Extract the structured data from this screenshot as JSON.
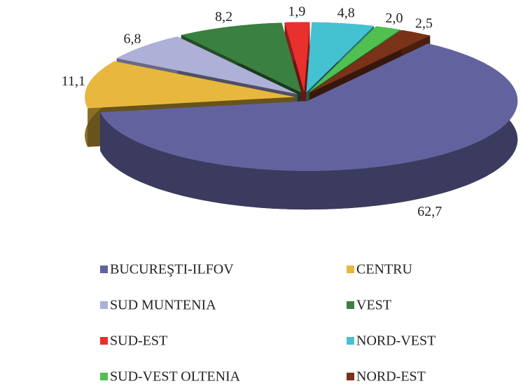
{
  "chart_data": {
    "type": "pie",
    "categories": [
      "BUCUREŞTI-ILFOV",
      "CENTRU",
      "SUD MUNTENIA",
      "VEST",
      "SUD-EST",
      "NORD-VEST",
      "SUD-VEST OLTENIA",
      "NORD-EST"
    ],
    "values": [
      62.7,
      11.1,
      6.8,
      8.2,
      1.9,
      4.8,
      2.0,
      2.5
    ],
    "value_labels": [
      "62,7",
      "11,1",
      "6,8",
      "8,2",
      "1,9",
      "4,8",
      "2,0",
      "2,5"
    ],
    "colors": [
      "#62639e",
      "#e8b83e",
      "#aeb0d8",
      "#3a8040",
      "#e8302c",
      "#45c2d2",
      "#50c050",
      "#7a3218"
    ]
  }
}
